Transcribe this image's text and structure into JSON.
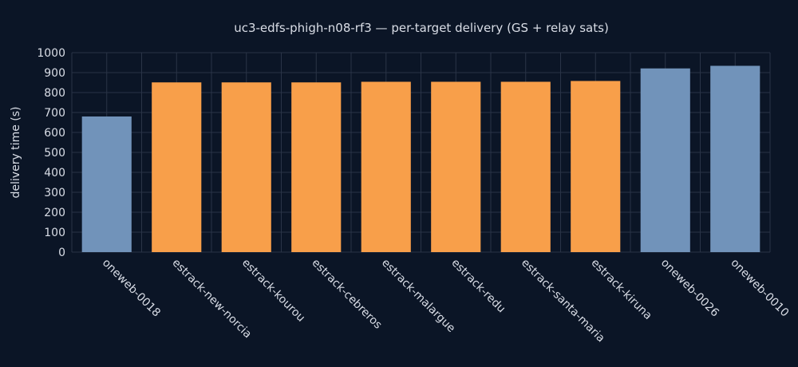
{
  "chart_data": {
    "type": "bar",
    "title": "uc3-edfs-phigh-n08-rf3 — per-target delivery (GS + relay sats)",
    "xlabel": "",
    "ylabel": "delivery time (s)",
    "ylim": [
      0,
      1000
    ],
    "yticks": [
      0,
      100,
      200,
      300,
      400,
      500,
      600,
      700,
      800,
      900,
      1000
    ],
    "grid": true,
    "categories": [
      "oneweb-0018",
      "estrack-new-norcia",
      "estrack-kourou",
      "estrack-cebreros",
      "estrack-malargue",
      "estrack-redu",
      "estrack-santa-maria",
      "estrack-kiruna",
      "oneweb-0026",
      "oneweb-0010"
    ],
    "values": [
      680,
      851,
      851,
      851,
      854,
      854,
      854,
      858,
      921,
      934
    ],
    "bar_colors": [
      "#7193ba",
      "#f89f4a",
      "#f89f4a",
      "#f89f4a",
      "#f89f4a",
      "#f89f4a",
      "#f89f4a",
      "#f89f4a",
      "#7193ba",
      "#7193ba"
    ]
  },
  "colors": {
    "background": "#0b1526",
    "text": "#d9dde6",
    "grid": "#2a3447"
  }
}
